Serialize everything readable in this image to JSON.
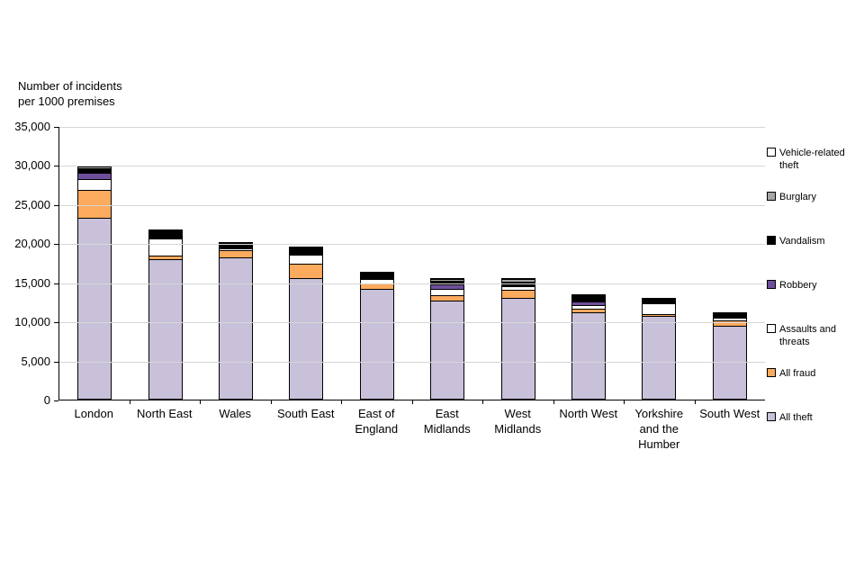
{
  "chart": {
    "title_line1": "Number of incidents",
    "title_line2": "per 1000 premises"
  },
  "chart_data": {
    "type": "bar",
    "subtype": "stacked",
    "title": "Number of incidents per 1000 premises",
    "xlabel": "",
    "ylabel": "Number of incidents per 1000 premises",
    "ylim": [
      0,
      35000
    ],
    "yticks": [
      0,
      5000,
      10000,
      15000,
      20000,
      25000,
      30000,
      35000
    ],
    "ytick_labels": [
      "0",
      "5,000",
      "10,000",
      "15,000",
      "20,000",
      "25,000",
      "30,000",
      "35,000"
    ],
    "grid": true,
    "legend_position": "right",
    "categories": [
      "London",
      "North East",
      "Wales",
      "South East",
      "East of England",
      "East Midlands",
      "West Midlands",
      "North West",
      "Yorkshire and the Humber",
      "South West"
    ],
    "series": [
      {
        "name": "All theft",
        "color": "#c9c1da",
        "values": [
          23300,
          18000,
          18200,
          15500,
          14200,
          12700,
          13000,
          11200,
          10700,
          9400
        ]
      },
      {
        "name": "All fraud",
        "color": "#fbaa5e",
        "values": [
          3700,
          500,
          1000,
          2000,
          800,
          800,
          1200,
          500,
          300,
          800
        ]
      },
      {
        "name": "Assaults and threats",
        "color": "#ffffff",
        "values": [
          1400,
          2300,
          400,
          1300,
          700,
          900,
          500,
          600,
          1600,
          500
        ]
      },
      {
        "name": "Robbery",
        "color": "#6f4e9c",
        "values": [
          1000,
          100,
          100,
          200,
          200,
          700,
          300,
          600,
          100,
          300
        ]
      },
      {
        "name": "Vandalism",
        "color": "#000000",
        "values": [
          700,
          1000,
          600,
          800,
          700,
          600,
          500,
          800,
          400,
          400
        ]
      },
      {
        "name": "Burglary",
        "color": "#a6a6a6",
        "values": [
          300,
          100,
          100,
          200,
          100,
          300,
          500,
          200,
          100,
          200
        ]
      },
      {
        "name": "Vehicle-related theft",
        "color": "#ffffff",
        "values": [
          200,
          100,
          100,
          200,
          100,
          200,
          100,
          100,
          100,
          100
        ]
      }
    ],
    "legend": [
      {
        "label": "Vehicle-related theft",
        "color": "#ffffff"
      },
      {
        "label": "Burglary",
        "color": "#a6a6a6"
      },
      {
        "label": "Vandalism",
        "color": "#000000"
      },
      {
        "label": "Robbery",
        "color": "#6f4e9c"
      },
      {
        "label": "Assaults and threats",
        "color": "#ffffff"
      },
      {
        "label": "All fraud",
        "color": "#fbaa5e"
      },
      {
        "label": "All theft",
        "color": "#c9c1da"
      }
    ]
  }
}
